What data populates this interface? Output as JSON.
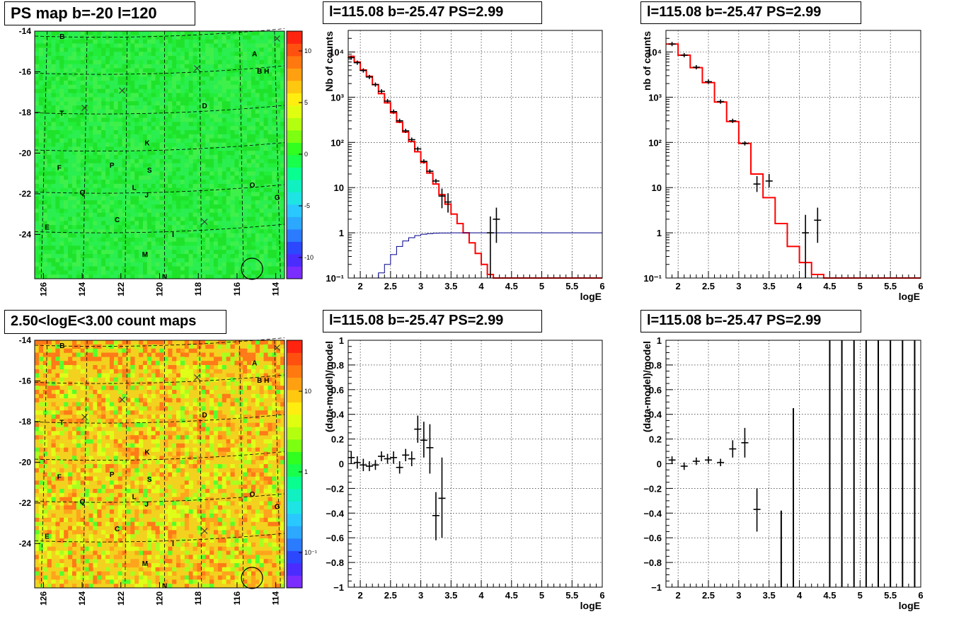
{
  "map_panels": [
    {
      "title": "PS map b=-20 l=120",
      "colorbar_ticks": [
        "10",
        "5",
        "0",
        "-5",
        "-10"
      ],
      "colorbar_colors": [
        "#7b2cff",
        "#4b2cff",
        "#2c48ff",
        "#2b7bff",
        "#2ca8ff",
        "#29c8ff",
        "#1ee4e4",
        "#10f0c0",
        "#08ff90",
        "#18ff4c",
        "#30ff20",
        "#7cff10",
        "#b4ff10",
        "#e0ff10",
        "#ffee10",
        "#ffc810",
        "#ffa010",
        "#ff7810",
        "#ff5010",
        "#ff2410"
      ],
      "field_color": "#22ee3a"
    },
    {
      "title": "2.50<logE<3.00 count maps",
      "colorbar_ticks": [
        "10",
        "1",
        "10⁻¹"
      ],
      "colorbar_colors": [
        "#7b2cff",
        "#4b2cff",
        "#2c48ff",
        "#2b7bff",
        "#2ca8ff",
        "#29c8ff",
        "#1ee4e4",
        "#10f0c0",
        "#08ff90",
        "#18ff4c",
        "#30ff20",
        "#7cff10",
        "#b4ff10",
        "#e0ff10",
        "#ffee10",
        "#ffc810",
        "#ffa010",
        "#ff7810",
        "#ff5010",
        "#ff2410"
      ],
      "field_color": "#f2d21e"
    }
  ],
  "map_axes": {
    "x_ticks": [
      "126",
      "124",
      "122",
      "120",
      "118",
      "116",
      "114"
    ],
    "y_ticks": [
      "-14",
      "-16",
      "-18",
      "-20",
      "-22",
      "-24"
    ]
  },
  "map_labels": [
    "B",
    "A",
    "B H",
    "T",
    "D",
    "K",
    "F",
    "P",
    "S",
    "L",
    "J",
    "Q",
    "O",
    "G",
    "C",
    "E",
    "I",
    "M",
    "N"
  ],
  "chart_data": [
    {
      "type": "line",
      "title": "l=115.08 b=-25.47 PS=2.99",
      "xlabel": "logE",
      "ylabel": "Nb of counts",
      "log_y": true,
      "xlim": [
        1.8,
        6
      ],
      "ylim": [
        0.1,
        30000
      ],
      "x_ticks": [
        "2",
        "2.5",
        "3",
        "3.5",
        "4",
        "4.5",
        "5",
        "5.5",
        "6"
      ],
      "y_ticks": [
        "10⁴",
        "10³",
        "10²",
        "10",
        "1",
        "10⁻¹"
      ],
      "grid": true,
      "series": [
        {
          "kind": "step",
          "color": "#ff0000",
          "x_edges": [
            1.8,
            1.9,
            2.0,
            2.1,
            2.2,
            2.3,
            2.4,
            2.5,
            2.6,
            2.7,
            2.8,
            2.9,
            3.0,
            3.1,
            3.2,
            3.3,
            3.4,
            3.5,
            3.6,
            3.7,
            3.8,
            3.9,
            4.0,
            4.1,
            4.2,
            4.3,
            6.0
          ],
          "values": [
            8000,
            6000,
            4000,
            2900,
            1900,
            1200,
            750,
            450,
            280,
            170,
            105,
            62,
            36,
            21,
            12,
            7,
            4.3,
            2.6,
            1.6,
            1.0,
            0.6,
            0.35,
            0.2,
            0.12,
            0.1,
            0.1
          ]
        },
        {
          "kind": "step",
          "color": "#00008b",
          "x_edges": [
            1.8,
            2.0,
            2.1,
            2.2,
            2.3,
            2.4,
            2.5,
            2.6,
            2.7,
            2.8,
            2.9,
            3.0,
            3.1,
            3.2,
            3.3,
            3.5,
            6.0
          ],
          "values": [
            0.1,
            0.1,
            0.1,
            0.1,
            0.13,
            0.2,
            0.33,
            0.5,
            0.66,
            0.78,
            0.87,
            0.93,
            0.96,
            0.98,
            0.99,
            1.0
          ]
        },
        {
          "kind": "points",
          "color": "#000000",
          "x": [
            1.85,
            1.95,
            2.05,
            2.15,
            2.25,
            2.35,
            2.45,
            2.55,
            2.65,
            2.75,
            2.85,
            2.95,
            3.05,
            3.15,
            3.25,
            3.35,
            3.45,
            4.15,
            4.25
          ],
          "y": [
            7500,
            5800,
            3900,
            2800,
            1900,
            1350,
            820,
            480,
            300,
            180,
            115,
            72,
            38,
            23,
            14,
            6.5,
            4.8,
            1.0,
            2.0
          ],
          "y_low": [
            null,
            null,
            null,
            null,
            null,
            null,
            null,
            null,
            null,
            null,
            null,
            null,
            null,
            null,
            null,
            3.5,
            2.8,
            0.1,
            0.6
          ],
          "y_high": [
            null,
            null,
            null,
            null,
            null,
            null,
            null,
            null,
            null,
            null,
            null,
            null,
            null,
            null,
            null,
            9.5,
            7.5,
            2.3,
            3.6
          ]
        }
      ]
    },
    {
      "type": "line",
      "title": "l=115.08 b=-25.47 PS=2.99",
      "xlabel": "logE",
      "ylabel": "nb of counts",
      "log_y": true,
      "xlim": [
        1.8,
        6
      ],
      "ylim": [
        0.1,
        30000
      ],
      "x_ticks": [
        "2",
        "2.5",
        "3",
        "3.5",
        "4",
        "4.5",
        "5",
        "5.5",
        "6"
      ],
      "y_ticks": [
        "10⁴",
        "10³",
        "10²",
        "10",
        "1",
        "10⁻¹"
      ],
      "grid": true,
      "series": [
        {
          "kind": "step",
          "color": "#ff0000",
          "x_edges": [
            1.8,
            2.0,
            2.2,
            2.4,
            2.6,
            2.8,
            3.0,
            3.2,
            3.4,
            3.6,
            3.8,
            4.0,
            4.2,
            4.4,
            6.0
          ],
          "values": [
            15000,
            8500,
            4500,
            2100,
            780,
            290,
            95,
            20,
            6,
            1.6,
            0.5,
            0.22,
            0.12,
            0.1
          ]
        },
        {
          "kind": "points",
          "color": "#000000",
          "x": [
            1.9,
            2.1,
            2.3,
            2.5,
            2.7,
            2.9,
            3.1,
            3.3,
            3.5,
            4.1,
            4.3
          ],
          "y": [
            15000,
            8500,
            4600,
            2200,
            800,
            300,
            95,
            12,
            14,
            1.0,
            1.9
          ],
          "y_low": [
            null,
            null,
            null,
            null,
            null,
            null,
            null,
            8,
            10,
            0.1,
            0.6
          ],
          "y_high": [
            null,
            null,
            null,
            null,
            null,
            null,
            null,
            18,
            20,
            2.5,
            3.6
          ]
        }
      ]
    },
    {
      "type": "scatter",
      "title": "l=115.08 b=-25.47 PS=2.99",
      "xlabel": "logE",
      "ylabel": "(data-model)/model",
      "log_y": false,
      "xlim": [
        1.8,
        6
      ],
      "ylim": [
        -1,
        1
      ],
      "x_ticks": [
        "2",
        "2.5",
        "3",
        "3.5",
        "4",
        "4.5",
        "5",
        "5.5",
        "6"
      ],
      "y_ticks": [
        "1",
        "0.8",
        "0.6",
        "0.4",
        "0.2",
        "0",
        "−0.2",
        "−0.4",
        "−0.6",
        "−0.8",
        "−1"
      ],
      "grid": true,
      "series": [
        {
          "kind": "points",
          "color": "#000000",
          "x": [
            1.85,
            1.95,
            2.05,
            2.15,
            2.25,
            2.35,
            2.45,
            2.55,
            2.65,
            2.75,
            2.85,
            2.95,
            3.05,
            3.15,
            3.25,
            3.35
          ],
          "y": [
            0.05,
            0.01,
            -0.01,
            -0.02,
            -0.01,
            0.06,
            0.04,
            0.05,
            -0.03,
            0.07,
            0.04,
            0.28,
            0.19,
            0.13,
            -0.42,
            -0.28
          ],
          "y_low": [
            0.0,
            -0.04,
            -0.06,
            -0.06,
            -0.05,
            0.02,
            0.0,
            0.0,
            -0.08,
            0.02,
            -0.02,
            0.17,
            0.05,
            -0.08,
            -0.62,
            -0.6
          ],
          "y_high": [
            0.1,
            0.06,
            0.04,
            0.02,
            0.03,
            0.1,
            0.08,
            0.1,
            0.02,
            0.12,
            0.1,
            0.39,
            0.34,
            0.32,
            -0.23,
            0.05
          ]
        }
      ]
    },
    {
      "type": "scatter",
      "title": "l=115.08 b=-25.47 PS=2.99",
      "xlabel": "logE",
      "ylabel": "(data-model)/model",
      "log_y": false,
      "xlim": [
        1.8,
        6
      ],
      "ylim": [
        -1,
        1
      ],
      "x_ticks": [
        "2",
        "2.5",
        "3",
        "3.5",
        "4",
        "4.5",
        "5",
        "5.5",
        "6"
      ],
      "y_ticks": [
        "1",
        "0.8",
        "0.6",
        "0.4",
        "0.2",
        "0",
        "−0.2",
        "−0.4",
        "−0.6",
        "−0.8",
        "−1"
      ],
      "grid": true,
      "series": [
        {
          "kind": "points",
          "color": "#000000",
          "x": [
            1.9,
            2.1,
            2.3,
            2.5,
            2.7,
            2.9,
            3.1,
            3.3
          ],
          "y": [
            0.03,
            -0.02,
            0.02,
            0.03,
            0.01,
            0.12,
            0.17,
            -0.37
          ],
          "y_low": [
            0.0,
            -0.05,
            -0.01,
            0.0,
            -0.02,
            0.05,
            0.05,
            -0.55
          ],
          "y_high": [
            0.06,
            0.01,
            0.05,
            0.06,
            0.04,
            0.19,
            0.29,
            -0.2
          ]
        },
        {
          "kind": "bars",
          "color": "#000000",
          "x": [
            3.7,
            3.9,
            4.5,
            4.7,
            4.9,
            5.1,
            5.3,
            5.5,
            5.7,
            5.9
          ],
          "y_low": [
            -1,
            -1,
            -1,
            -1,
            -1,
            -1,
            -1,
            -1,
            -1,
            -1
          ],
          "y_high": [
            -0.38,
            0.45,
            1,
            1,
            1,
            1,
            1,
            1,
            1,
            1
          ]
        }
      ]
    }
  ]
}
